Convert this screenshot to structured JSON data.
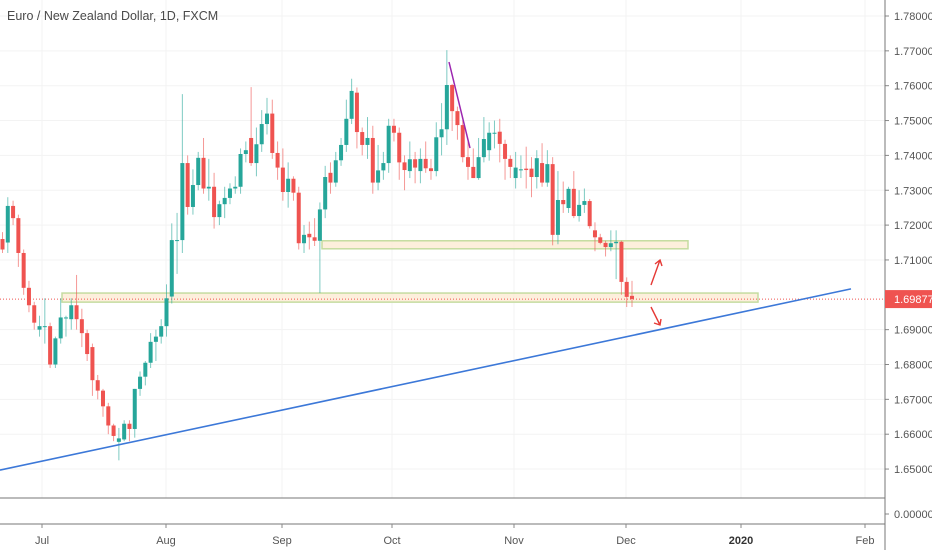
{
  "header": {
    "title": "Euro / New Zealand Dollar, 1D, FXCM"
  },
  "colors": {
    "up": "#26a69a",
    "down": "#ef5350",
    "trendline": "#3c78d8",
    "purple_line": "#9c27b0",
    "zone_fill": "#fdebd3",
    "zone_border": "#c5dca0",
    "arrow": "#e53935",
    "last_price_bg": "#ef5350"
  },
  "chart_data": {
    "type": "candlestick",
    "title": "Euro / New Zealand Dollar, 1D, FXCM",
    "ylim": [
      1.65,
      1.78
    ],
    "y_ticks": [
      "1.78000",
      "1.77000",
      "1.76000",
      "1.75000",
      "1.74000",
      "1.73000",
      "1.72000",
      "1.71000",
      "1.69000",
      "1.68000",
      "1.67000",
      "1.66000",
      "1.65000"
    ],
    "x_ticks": [
      "Jul",
      "Aug",
      "Sep",
      "Oct",
      "Nov",
      "Dec",
      "2020",
      "Feb"
    ],
    "last_price": "1.69877",
    "sub_pane_tick": "0.00000",
    "candles_ohlc": [
      [
        1.716,
        1.718,
        1.712,
        1.713
      ],
      [
        1.715,
        1.728,
        1.712,
        1.7255
      ],
      [
        1.7255,
        1.727,
        1.72,
        1.722
      ],
      [
        1.722,
        1.723,
        1.708,
        1.712
      ],
      [
        1.712,
        1.713,
        1.7,
        1.702
      ],
      [
        1.702,
        1.704,
        1.695,
        1.697
      ],
      [
        1.697,
        1.698,
        1.69,
        1.692
      ],
      [
        1.69,
        1.694,
        1.688,
        1.691
      ],
      [
        1.691,
        1.699,
        1.686,
        1.691
      ],
      [
        1.691,
        1.692,
        1.679,
        1.68
      ],
      [
        1.68,
        1.688,
        1.679,
        1.6875
      ],
      [
        1.6875,
        1.699,
        1.686,
        1.6935
      ],
      [
        1.6935,
        1.694,
        1.688,
        1.6935
      ],
      [
        1.693,
        1.699,
        1.69,
        1.697
      ],
      [
        1.697,
        1.7057,
        1.69,
        1.693
      ],
      [
        1.693,
        1.696,
        1.685,
        1.689
      ],
      [
        1.689,
        1.69,
        1.681,
        1.683
      ],
      [
        1.685,
        1.686,
        1.671,
        1.6755
      ],
      [
        1.6755,
        1.677,
        1.67,
        1.6725
      ],
      [
        1.6725,
        1.673,
        1.665,
        1.668
      ],
      [
        1.668,
        1.669,
        1.66,
        1.6625
      ],
      [
        1.6625,
        1.663,
        1.658,
        1.6595
      ],
      [
        1.6578,
        1.6618,
        1.6525,
        1.6588
      ],
      [
        1.6585,
        1.664,
        1.658,
        1.663
      ],
      [
        1.663,
        1.664,
        1.658,
        1.6615
      ],
      [
        1.6615,
        1.673,
        1.659,
        1.673
      ],
      [
        1.673,
        1.678,
        1.671,
        1.6765
      ],
      [
        1.6765,
        1.681,
        1.674,
        1.6805
      ],
      [
        1.6805,
        1.689,
        1.679,
        1.6865
      ],
      [
        1.6865,
        1.69,
        1.681,
        1.688
      ],
      [
        1.688,
        1.693,
        1.686,
        1.691
      ],
      [
        1.691,
        1.703,
        1.688,
        1.699
      ],
      [
        1.6995,
        1.7205,
        1.6975,
        1.7157
      ],
      [
        1.7157,
        1.7235,
        1.706,
        1.7157
      ],
      [
        1.7157,
        1.7576,
        1.712,
        1.7378
      ],
      [
        1.7378,
        1.74,
        1.723,
        1.7252
      ],
      [
        1.7252,
        1.736,
        1.723,
        1.7315
      ],
      [
        1.7315,
        1.741,
        1.73,
        1.7393
      ],
      [
        1.7393,
        1.745,
        1.729,
        1.7305
      ],
      [
        1.7305,
        1.739,
        1.727,
        1.731
      ],
      [
        1.731,
        1.735,
        1.719,
        1.7223
      ],
      [
        1.7223,
        1.727,
        1.72,
        1.726
      ],
      [
        1.726,
        1.731,
        1.722,
        1.7278
      ],
      [
        1.7278,
        1.732,
        1.726,
        1.7305
      ],
      [
        1.7305,
        1.734,
        1.729,
        1.731
      ],
      [
        1.731,
        1.742,
        1.729,
        1.7404
      ],
      [
        1.7404,
        1.744,
        1.738,
        1.7415
      ],
      [
        1.745,
        1.7596,
        1.737,
        1.7378
      ],
      [
        1.7378,
        1.748,
        1.734,
        1.7432
      ],
      [
        1.7432,
        1.753,
        1.741,
        1.749
      ],
      [
        1.749,
        1.7565,
        1.746,
        1.752
      ],
      [
        1.752,
        1.756,
        1.739,
        1.7407
      ],
      [
        1.7407,
        1.744,
        1.733,
        1.7365
      ],
      [
        1.7365,
        1.742,
        1.727,
        1.7295
      ],
      [
        1.7295,
        1.738,
        1.725,
        1.7333
      ],
      [
        1.7333,
        1.734,
        1.727,
        1.7293
      ],
      [
        1.7293,
        1.731,
        1.713,
        1.7148
      ],
      [
        1.7148,
        1.72,
        1.712,
        1.7172
      ],
      [
        1.7175,
        1.721,
        1.713,
        1.7165
      ],
      [
        1.7165,
        1.722,
        1.714,
        1.7155
      ],
      [
        1.7155,
        1.7265,
        1.7005,
        1.7245
      ],
      [
        1.7245,
        1.737,
        1.722,
        1.7338
      ],
      [
        1.735,
        1.738,
        1.729,
        1.7322
      ],
      [
        1.7322,
        1.741,
        1.731,
        1.7386
      ],
      [
        1.7386,
        1.745,
        1.737,
        1.743
      ],
      [
        1.743,
        1.756,
        1.741,
        1.7505
      ],
      [
        1.7505,
        1.762,
        1.749,
        1.7585
      ],
      [
        1.758,
        1.7595,
        1.742,
        1.7467
      ],
      [
        1.7467,
        1.748,
        1.74,
        1.743
      ],
      [
        1.743,
        1.751,
        1.739,
        1.745
      ],
      [
        1.745,
        1.7485,
        1.729,
        1.7322
      ],
      [
        1.7322,
        1.743,
        1.73,
        1.7357
      ],
      [
        1.7357,
        1.741,
        1.733,
        1.7378
      ],
      [
        1.7378,
        1.7505,
        1.735,
        1.7485
      ],
      [
        1.7485,
        1.7505,
        1.744,
        1.7465
      ],
      [
        1.7465,
        1.748,
        1.733,
        1.738
      ],
      [
        1.738,
        1.74,
        1.73,
        1.7358
      ],
      [
        1.7355,
        1.744,
        1.7335,
        1.7389
      ],
      [
        1.7389,
        1.741,
        1.732,
        1.7365
      ],
      [
        1.7355,
        1.742,
        1.732,
        1.739
      ],
      [
        1.739,
        1.744,
        1.735,
        1.7363
      ],
      [
        1.7363,
        1.739,
        1.733,
        1.7355
      ],
      [
        1.7355,
        1.7495,
        1.734,
        1.7452
      ],
      [
        1.7452,
        1.755,
        1.74,
        1.7475
      ],
      [
        1.7475,
        1.7702,
        1.743,
        1.7602
      ],
      [
        1.7602,
        1.7605,
        1.747,
        1.7527
      ],
      [
        1.7527,
        1.754,
        1.7445,
        1.7487
      ],
      [
        1.7487,
        1.75,
        1.738,
        1.7395
      ],
      [
        1.7395,
        1.744,
        1.733,
        1.7367
      ],
      [
        1.7367,
        1.742,
        1.7335,
        1.7335
      ],
      [
        1.7335,
        1.745,
        1.733,
        1.7395
      ],
      [
        1.7395,
        1.751,
        1.738,
        1.7447
      ],
      [
        1.7415,
        1.7495,
        1.7385,
        1.7465
      ],
      [
        1.7465,
        1.75,
        1.742,
        1.7465
      ],
      [
        1.7468,
        1.7505,
        1.738,
        1.7433
      ],
      [
        1.7433,
        1.7445,
        1.733,
        1.739
      ],
      [
        1.739,
        1.74,
        1.7335,
        1.7367
      ],
      [
        1.7335,
        1.741,
        1.7305,
        1.7365
      ],
      [
        1.736,
        1.74,
        1.7335,
        1.736
      ],
      [
        1.7362,
        1.7425,
        1.7305,
        1.7358
      ],
      [
        1.7362,
        1.7395,
        1.728,
        1.7338
      ],
      [
        1.7338,
        1.7415,
        1.7305,
        1.7392
      ],
      [
        1.7378,
        1.7435,
        1.731,
        1.7322
      ],
      [
        1.7322,
        1.7415,
        1.731,
        1.7375
      ],
      [
        1.7375,
        1.7395,
        1.7142,
        1.7172
      ],
      [
        1.7172,
        1.7355,
        1.7145,
        1.7272
      ],
      [
        1.7272,
        1.7325,
        1.7235,
        1.726
      ],
      [
        1.7249,
        1.731,
        1.7235,
        1.7304
      ],
      [
        1.7304,
        1.7355,
        1.722,
        1.7226
      ],
      [
        1.7226,
        1.73,
        1.721,
        1.7258
      ],
      [
        1.7258,
        1.7305,
        1.7235,
        1.7269
      ],
      [
        1.7269,
        1.7275,
        1.719,
        1.7197
      ],
      [
        1.7185,
        1.7208,
        1.7125,
        1.7165
      ],
      [
        1.7165,
        1.7175,
        1.7145,
        1.7149
      ],
      [
        1.7149,
        1.7155,
        1.711,
        1.7137
      ],
      [
        1.7137,
        1.7185,
        1.7125,
        1.7148
      ],
      [
        1.7148,
        1.7185,
        1.7045,
        1.7152
      ],
      [
        1.7152,
        1.7155,
        1.7,
        1.7037
      ],
      [
        1.7037,
        1.705,
        1.6965,
        1.6994
      ],
      [
        1.6997,
        1.704,
        1.6965,
        1.6988
      ]
    ],
    "drawings": {
      "resistance_zone": [
        1.7132,
        1.7155
      ],
      "support_zone": [
        1.6979,
        1.7005
      ],
      "trendline_prices": [
        1.6497,
        1.7017
      ],
      "purple_line_prices": [
        1.7668,
        1.7421
      ]
    },
    "grid": true
  }
}
